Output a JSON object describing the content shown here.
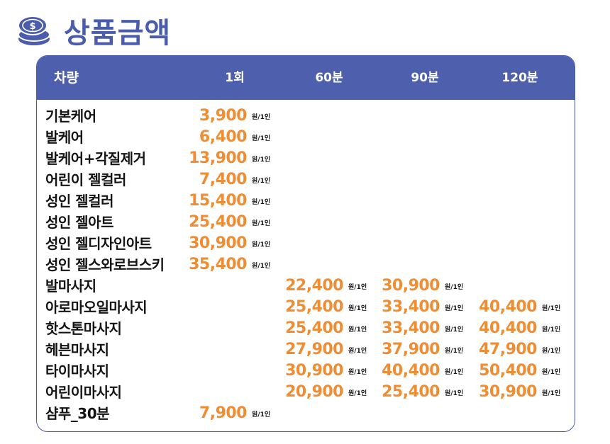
{
  "title": "상품금액",
  "header": {
    "name": "차량",
    "cols": [
      "1회",
      "60분",
      "90분",
      "120분"
    ]
  },
  "unit_label": "원/1인",
  "colors": {
    "brand": "#4d5fad",
    "price": "#f08d32",
    "text": "#141414"
  },
  "rows": [
    {
      "name": "기본케어",
      "prices": [
        "3,900",
        "",
        "",
        ""
      ]
    },
    {
      "name": "발케어",
      "prices": [
        "6,400",
        "",
        "",
        ""
      ]
    },
    {
      "name": "발케어+각질제거",
      "prices": [
        "13,900",
        "",
        "",
        ""
      ]
    },
    {
      "name": "어린이 젤컬러",
      "prices": [
        "7,400",
        "",
        "",
        ""
      ]
    },
    {
      "name": "성인 젤컬러",
      "prices": [
        "15,400",
        "",
        "",
        ""
      ]
    },
    {
      "name": "성인 젤아트",
      "prices": [
        "25,400",
        "",
        "",
        ""
      ]
    },
    {
      "name": "성인 젤디자인아트",
      "prices": [
        "30,900",
        "",
        "",
        ""
      ]
    },
    {
      "name": "성인 젤스와로브스키",
      "prices": [
        "35,400",
        "",
        "",
        ""
      ]
    },
    {
      "name": "발마사지",
      "prices": [
        "",
        "22,400",
        "30,900",
        ""
      ]
    },
    {
      "name": "아로마오일마사지",
      "prices": [
        "",
        "25,400",
        "33,400",
        "40,400"
      ]
    },
    {
      "name": "핫스톤마사지",
      "prices": [
        "",
        "25,400",
        "33,400",
        "40,400"
      ]
    },
    {
      "name": "헤븐마사지",
      "prices": [
        "",
        "27,900",
        "37,900",
        "47,900"
      ]
    },
    {
      "name": "타이마사지",
      "prices": [
        "",
        "30,900",
        "40,400",
        "50,400"
      ]
    },
    {
      "name": "어린이마사지",
      "prices": [
        "",
        "20,900",
        "25,400",
        "30,900"
      ]
    },
    {
      "name": "샴푸_30분",
      "prices": [
        "7,900",
        "",
        "",
        ""
      ]
    }
  ]
}
